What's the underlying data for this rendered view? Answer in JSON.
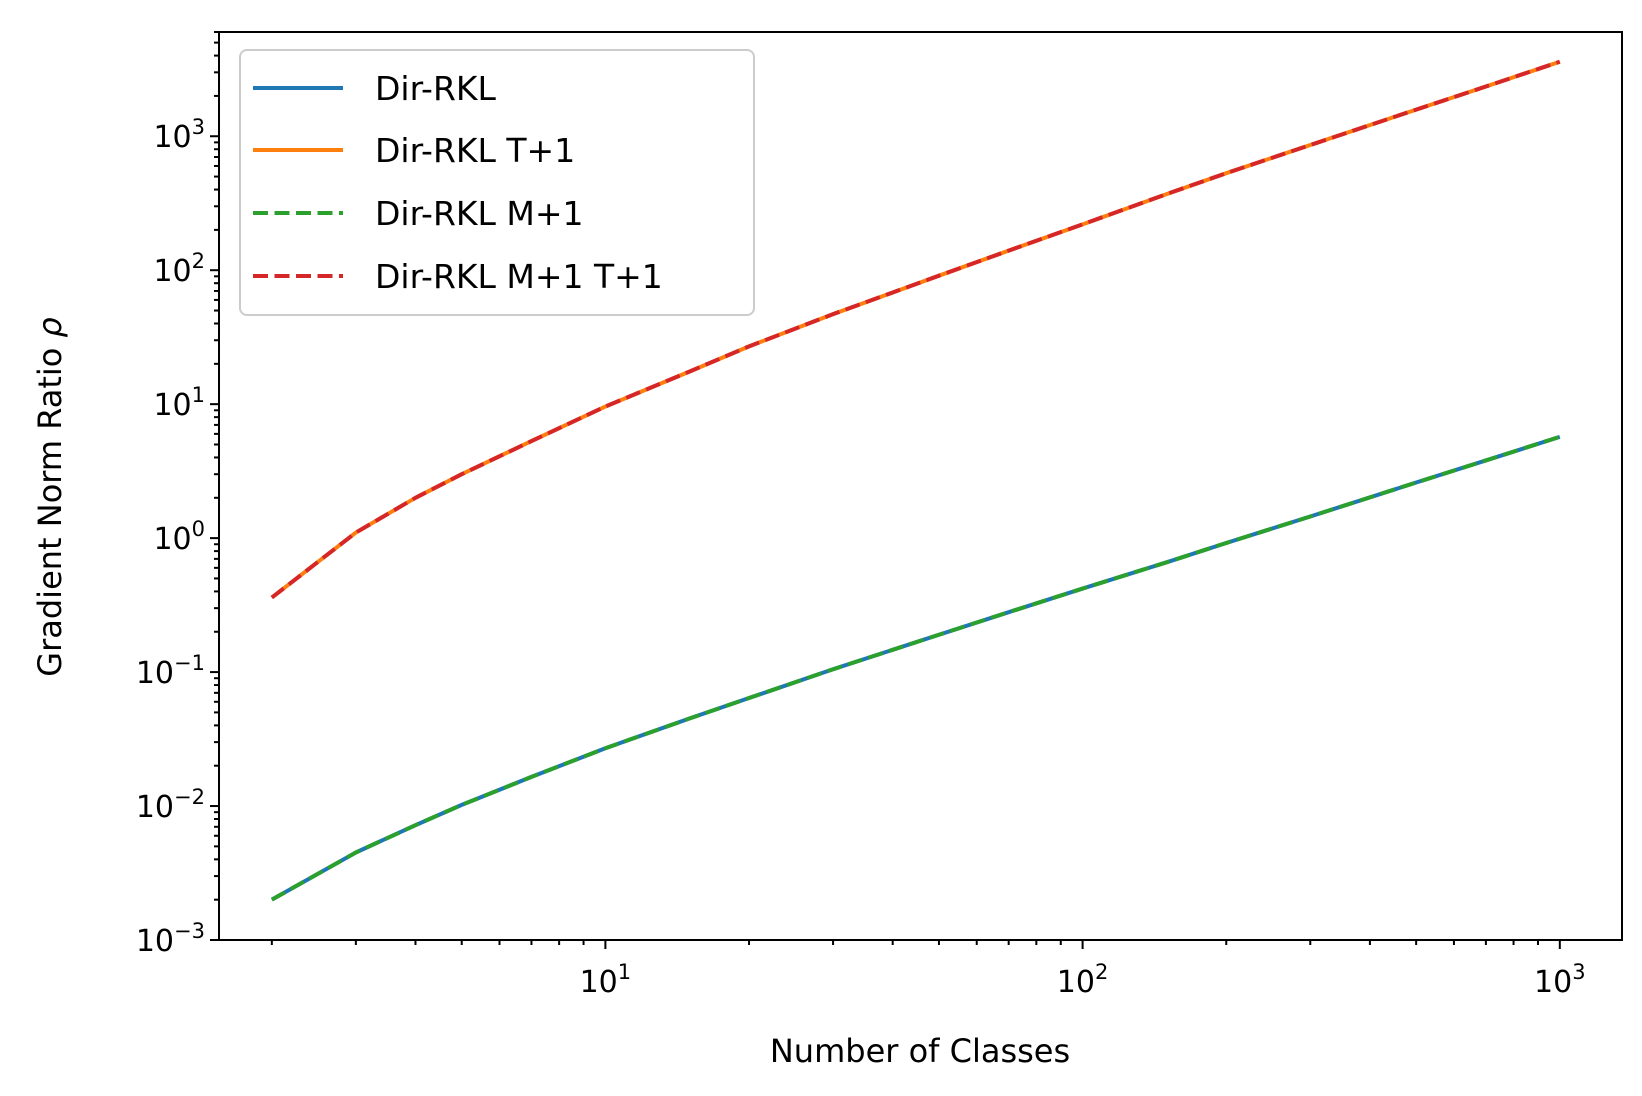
{
  "chart_data": {
    "type": "line",
    "title": "",
    "xlabel": "Number of Classes",
    "ylabel": "Gradient Norm Ratio",
    "ylabel_symbol": "ρ",
    "xscale": "log",
    "yscale": "log",
    "xlim": [
      1.55,
      1350
    ],
    "ylim": [
      0.001,
      6000
    ],
    "grid": false,
    "legend_position": "top-left",
    "x_ticks": [
      {
        "value": 10,
        "base": "10",
        "exp": "1"
      },
      {
        "value": 100,
        "base": "10",
        "exp": "2"
      },
      {
        "value": 1000,
        "base": "10",
        "exp": "3"
      }
    ],
    "y_ticks": [
      {
        "value": 0.001,
        "base": "10",
        "exp": "−3"
      },
      {
        "value": 0.01,
        "base": "10",
        "exp": "−2"
      },
      {
        "value": 0.1,
        "base": "10",
        "exp": "−1"
      },
      {
        "value": 1,
        "base": "10",
        "exp": "0"
      },
      {
        "value": 10,
        "base": "10",
        "exp": "1"
      },
      {
        "value": 100,
        "base": "10",
        "exp": "2"
      },
      {
        "value": 1000,
        "base": "10",
        "exp": "3"
      }
    ],
    "x": [
      2,
      3,
      4,
      5,
      7,
      10,
      15,
      20,
      30,
      50,
      70,
      100,
      150,
      200,
      300,
      500,
      700,
      1000
    ],
    "series": [
      {
        "name": "Dir-RKL",
        "color": "#1f77b4",
        "dash": "solid",
        "values": [
          0.002,
          0.0045,
          0.0072,
          0.0102,
          0.0165,
          0.027,
          0.045,
          0.064,
          0.105,
          0.19,
          0.28,
          0.42,
          0.66,
          0.92,
          1.45,
          2.6,
          3.8,
          5.7
        ]
      },
      {
        "name": "Dir-RKL T+1",
        "color": "#ff7f0e",
        "dash": "solid",
        "values": [
          0.36,
          1.1,
          2.0,
          3.0,
          5.3,
          9.6,
          17.5,
          27,
          47,
          91,
          140,
          220,
          370,
          530,
          860,
          1580,
          2350,
          3600
        ]
      },
      {
        "name": "Dir-RKL M+1",
        "color": "#2ca02c",
        "dash": "dashed",
        "values": [
          0.002,
          0.0045,
          0.0072,
          0.0102,
          0.0165,
          0.027,
          0.045,
          0.064,
          0.105,
          0.19,
          0.28,
          0.42,
          0.66,
          0.92,
          1.45,
          2.6,
          3.8,
          5.7
        ]
      },
      {
        "name": "Dir-RKL M+1 T+1",
        "color": "#d62728",
        "dash": "dashed",
        "values": [
          0.36,
          1.1,
          2.0,
          3.0,
          5.3,
          9.6,
          17.5,
          27,
          47,
          91,
          140,
          220,
          370,
          530,
          860,
          1580,
          2350,
          3600
        ]
      }
    ]
  }
}
